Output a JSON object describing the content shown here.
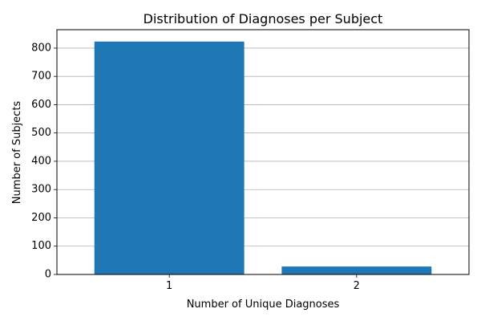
{
  "chart_data": {
    "type": "bar",
    "title": "Distribution of Diagnoses per Subject",
    "xlabel": "Number of Unique Diagnoses",
    "ylabel": "Number of Subjects",
    "categories": [
      "1",
      "2"
    ],
    "values": [
      823,
      28
    ],
    "ylim": [
      0,
      865
    ],
    "yticks": [
      0,
      100,
      200,
      300,
      400,
      500,
      600,
      700,
      800
    ],
    "grid": "y",
    "bar_color": "#1f77b4",
    "grid_color": "#b0b0b0"
  }
}
